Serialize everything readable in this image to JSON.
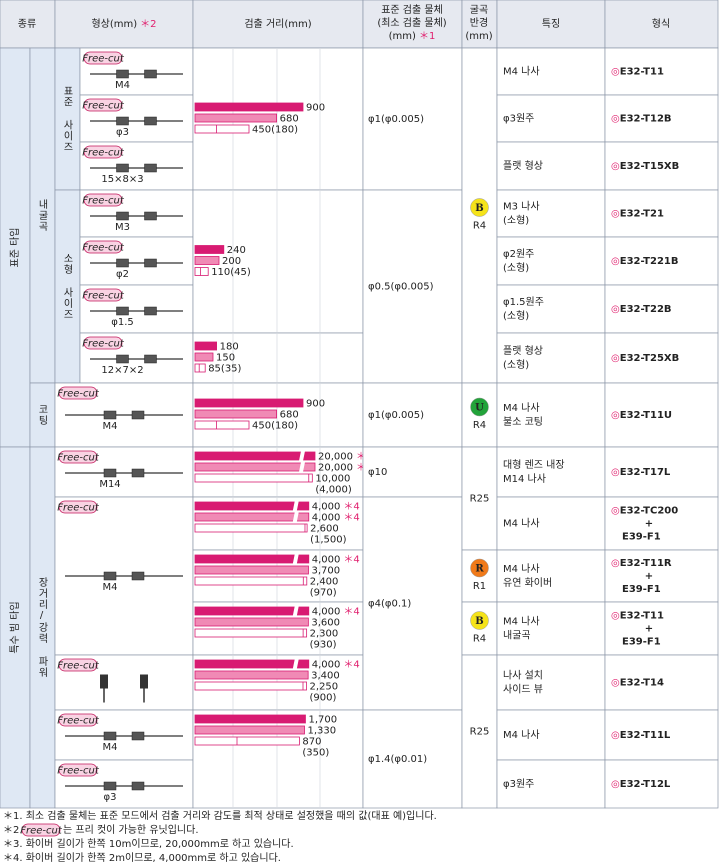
{
  "header": {
    "type": "종류",
    "shape": "형상(mm)",
    "shape_note": "＊2",
    "distance": "검출 거리(mm)",
    "object": [
      "표준 검출 물체",
      "(최소 검출 물체)",
      "(mm)"
    ],
    "object_note": "＊1",
    "bend": [
      "굴곡",
      "반경",
      "(mm)"
    ],
    "feature": "특징",
    "model": "형식"
  },
  "freecut": "Free-cut",
  "mark": "◎",
  "categories": {
    "level1": [
      "표준 타입",
      "특수 빔 타입"
    ],
    "level2": [
      "내굴곡",
      "코팅",
      "장거리/강력 파워"
    ],
    "level3": [
      "표준 사이즈",
      "소형 사이즈"
    ]
  },
  "shapes": [
    {
      "label": "M4"
    },
    {
      "label": "φ3"
    },
    {
      "label": "15×8×3"
    },
    {
      "label": "M3"
    },
    {
      "label": "φ2"
    },
    {
      "label": "φ1.5"
    },
    {
      "label": "12×7×2"
    },
    {
      "label": "M4"
    },
    {
      "label": "M14"
    },
    {
      "label": "M4"
    },
    {},
    {
      "label": "M4"
    },
    {
      "label": "φ3"
    }
  ],
  "distances": [
    {
      "bars": [
        {
          "value": 900
        },
        {
          "value": 680
        },
        {
          "value": 450
        }
      ],
      "inner": {
        "value": 180,
        "label": "(180)"
      }
    },
    {
      "bars": [
        {
          "value": 240
        },
        {
          "value": 200
        },
        {
          "value": 110
        }
      ],
      "inner": {
        "value": 45,
        "label": "(45)"
      }
    },
    {
      "bars": [
        {
          "value": 180
        },
        {
          "value": 150
        },
        {
          "value": 85
        }
      ],
      "inner": {
        "value": 35,
        "label": "(35)"
      }
    },
    {
      "bars": [
        {
          "value": 900
        },
        {
          "value": 680
        },
        {
          "value": 450
        }
      ],
      "inner": {
        "value": 180,
        "label": "(180)"
      }
    },
    {
      "bars": [
        {
          "value": 20000,
          "label": "20,000",
          "note": "＊3"
        },
        {
          "value": 20000,
          "label": "20,000",
          "note": "＊3"
        },
        {
          "value": 10000,
          "label": "10,000"
        }
      ],
      "inner": {
        "value": 4000,
        "label": "(4,000)"
      }
    },
    {
      "bars": [
        {
          "value": 4000,
          "label": "4,000",
          "note": "＊4"
        },
        {
          "value": 4000,
          "label": "4,000",
          "note": "＊4"
        },
        {
          "value": 2600,
          "label": "2,600"
        }
      ],
      "inner": {
        "value": 1500,
        "label": "(1,500)"
      }
    },
    {
      "bars": [
        {
          "value": 4000,
          "label": "4,000",
          "note": "＊4"
        },
        {
          "value": 3700,
          "label": "3,700"
        },
        {
          "value": 2400,
          "label": "2,400"
        }
      ],
      "inner": {
        "value": 970,
        "label": "(970)"
      }
    },
    {
      "bars": [
        {
          "value": 4000,
          "label": "4,000",
          "note": "＊4"
        },
        {
          "value": 3600,
          "label": "3,600"
        },
        {
          "value": 2300,
          "label": "2,300"
        }
      ],
      "inner": {
        "value": 930,
        "label": "(930)"
      }
    },
    {
      "bars": [
        {
          "value": 4000,
          "label": "4,000",
          "note": "＊4"
        },
        {
          "value": 3400,
          "label": "3,400"
        },
        {
          "value": 2250,
          "label": "2,250"
        }
      ],
      "inner": {
        "value": 900,
        "label": "(900)"
      }
    },
    {
      "bars": [
        {
          "value": 1700,
          "label": "1,700"
        },
        {
          "value": 1330,
          "label": "1,330"
        },
        {
          "value": 870
        }
      ],
      "inner": {
        "value": 350,
        "label": "(350)"
      }
    }
  ],
  "objects": [
    "φ1(φ0.005)",
    "φ0.5(φ0.005)",
    "φ1(φ0.005)",
    "φ10",
    "φ4(φ0.1)",
    "φ1.4(φ0.01)"
  ],
  "bends": [
    {
      "badge": "B",
      "radius": "R4"
    },
    {
      "badge": "U",
      "radius": "R4"
    },
    {
      "radius": "R25"
    },
    {
      "badge": "R",
      "radius": "R1"
    },
    {
      "badge": "B",
      "radius": "R4"
    },
    {
      "radius": "R25"
    }
  ],
  "rows": [
    {
      "feature": [
        "M4 나사"
      ],
      "model": [
        "E32-T11"
      ]
    },
    {
      "feature": [
        "φ3원주"
      ],
      "model": [
        "E32-T12B"
      ]
    },
    {
      "feature": [
        "플랫 형상"
      ],
      "model": [
        "E32-T15XB"
      ]
    },
    {
      "feature": [
        "M3 나사",
        "(소형)"
      ],
      "model": [
        "E32-T21"
      ]
    },
    {
      "feature": [
        "φ2원주",
        "(소형)"
      ],
      "model": [
        "E32-T221B"
      ]
    },
    {
      "feature": [
        "φ1.5원주",
        "(소형)"
      ],
      "model": [
        "E32-T22B"
      ]
    },
    {
      "feature": [
        "플랫 형상",
        "(소형)"
      ],
      "model": [
        "E32-T25XB"
      ]
    },
    {
      "feature": [
        "M4 나사",
        "불소 코팅"
      ],
      "model": [
        "E32-T11U"
      ]
    },
    {
      "feature": [
        "대형 렌즈 내장",
        "M14 나사"
      ],
      "model": [
        "E32-T17L"
      ]
    },
    {
      "feature": [
        "M4 나사"
      ],
      "model": [
        "E32-TC200",
        "+",
        "E39-F1"
      ]
    },
    {
      "feature": [
        "M4 나사",
        "유연 화이버"
      ],
      "model": [
        "E32-T11R",
        "+",
        "E39-F1"
      ]
    },
    {
      "feature": [
        "M4 나사",
        "내굴곡"
      ],
      "model": [
        "E32-T11",
        "+",
        "E39-F1"
      ]
    },
    {
      "feature": [
        "나사 설치",
        "사이드 뷰"
      ],
      "model": [
        "E32-T14"
      ]
    },
    {
      "feature": [
        "M4 나사"
      ],
      "model": [
        "E32-T11L"
      ]
    },
    {
      "feature": [
        "φ3원주"
      ],
      "model": [
        "E32-T12L"
      ]
    }
  ],
  "notes": [
    {
      "text": "＊1. 최소 검출 물체는 표준 모드에서 검출 거리와 감도를 최적 상태로 설정했을 때의 값(대표 예)입니다."
    },
    {
      "prefix": "＊2.",
      "text": "는 프리 컷이 가능한 유닛입니다."
    },
    {
      "text": "＊3. 화이버 길이가 한쪽 10m이므로, 20,000mm로 하고 있습니다."
    },
    {
      "text": "＊4. 화이버 길이가 한쪽 2m이므로, 4,000mm로 하고 있습니다."
    }
  ]
}
